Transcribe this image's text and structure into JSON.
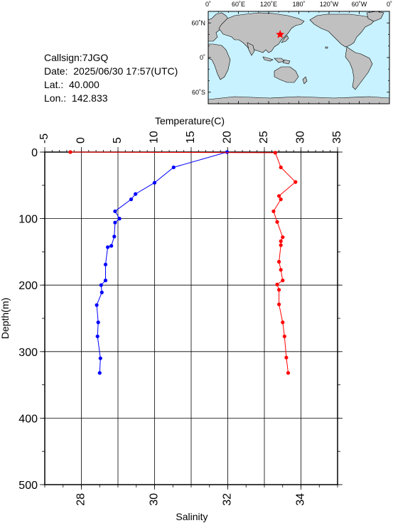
{
  "info": {
    "callsign": "Callsign:7JGQ",
    "date": "Date:  2025/06/30 17:57(UTC)",
    "lat": "Lat.:  40.000",
    "lon": "Lon.:  142.833"
  },
  "map": {
    "lon_labels": [
      "0˚",
      "60˚E",
      "120˚E",
      "180˚",
      "120˚W",
      "60˚W",
      "0˚"
    ],
    "lat_labels": [
      "60˚N",
      "0˚",
      "60˚S"
    ],
    "ocean_color": "#c8f2ff",
    "land_color": "#c0c0c0",
    "marker": {
      "lon": 142.833,
      "lat": 40.0,
      "color": "#ff0000",
      "shape": "star"
    }
  },
  "chart_data": {
    "type": "line",
    "ylabel": "Depth(m)",
    "xlabel_top": "Temperature(C)",
    "xlabel_bottom": "Salinity",
    "depth_range": [
      0,
      500
    ],
    "depth_ticks": [
      "0",
      "100",
      "200",
      "300",
      "400",
      "500"
    ],
    "temp_range": [
      -5,
      35
    ],
    "temp_ticks": [
      "-5",
      "0",
      "5",
      "10",
      "15",
      "20",
      "25",
      "30",
      "35"
    ],
    "sal_range": [
      27,
      35
    ],
    "sal_ticks": [
      "28",
      "30",
      "32",
      "34"
    ],
    "grid": true,
    "series": [
      {
        "axis": "temperature",
        "color": "#0000ff",
        "points": [
          [
            19.9,
            0
          ],
          [
            12.6,
            23
          ],
          [
            10.0,
            46
          ],
          [
            7.4,
            63
          ],
          [
            6.8,
            71
          ],
          [
            4.6,
            89
          ],
          [
            5.2,
            100
          ],
          [
            4.6,
            106
          ],
          [
            4.5,
            127
          ],
          [
            4.1,
            141
          ],
          [
            3.6,
            143
          ],
          [
            3.3,
            169
          ],
          [
            3.3,
            193
          ],
          [
            2.7,
            200
          ],
          [
            2.8,
            211
          ],
          [
            2.1,
            230
          ],
          [
            2.3,
            256
          ],
          [
            2.2,
            277
          ],
          [
            2.6,
            310
          ],
          [
            2.5,
            332
          ]
        ]
      },
      {
        "axis": "salinity",
        "color": "#ff0000",
        "points": [
          [
            27.7,
            0
          ],
          [
            33.3,
            1
          ],
          [
            33.45,
            23
          ],
          [
            33.85,
            45
          ],
          [
            33.4,
            66
          ],
          [
            33.45,
            71
          ],
          [
            33.25,
            89
          ],
          [
            33.35,
            105
          ],
          [
            33.5,
            128
          ],
          [
            33.45,
            134
          ],
          [
            33.45,
            140
          ],
          [
            33.4,
            165
          ],
          [
            33.45,
            177
          ],
          [
            33.5,
            193
          ],
          [
            33.35,
            199
          ],
          [
            33.4,
            207
          ],
          [
            33.4,
            229
          ],
          [
            33.5,
            256
          ],
          [
            33.55,
            277
          ],
          [
            33.6,
            309
          ],
          [
            33.65,
            332
          ]
        ]
      }
    ]
  }
}
